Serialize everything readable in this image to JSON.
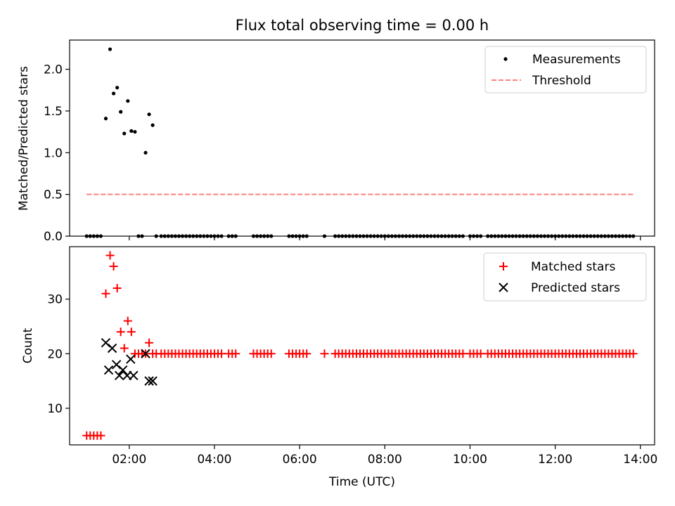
{
  "figure_title": "Flux total observing time = 0.00 h",
  "colors": {
    "measurement": "#000000",
    "threshold": "#ff7f7f",
    "matched": "#ff0000",
    "predicted": "#000000"
  },
  "chart_data": [
    {
      "type": "scatter",
      "title": "Flux total observing time = 0.00 h",
      "xlabel": "",
      "ylabel": "Matched/Predicted stars",
      "xlim": [
        "00:36",
        "14:20"
      ],
      "ylim": [
        0,
        2.35
      ],
      "yticks": [
        0.0,
        0.5,
        1.0,
        1.5,
        2.0
      ],
      "ytick_labels": [
        "0.0",
        "0.5",
        "1.0",
        "1.5",
        "2.0"
      ],
      "legend": "top-right",
      "series": [
        {
          "name": "Measurements",
          "kind": "points",
          "x": [
            "01:00",
            "01:05",
            "01:10",
            "01:15",
            "01:20",
            "01:27",
            "01:33",
            "01:38",
            "01:43",
            "01:48",
            "01:53",
            "01:58",
            "02:03",
            "02:08",
            "02:13",
            "02:18",
            "02:23",
            "02:28",
            "02:33",
            "02:38",
            "02:45",
            "02:50",
            "02:55",
            "03:00",
            "03:05",
            "03:10",
            "03:15",
            "03:20",
            "03:25",
            "03:30",
            "03:35",
            "03:40",
            "03:45",
            "03:50",
            "03:55",
            "04:00",
            "04:05",
            "04:10",
            "04:20",
            "04:25",
            "04:30",
            "04:55",
            "05:00",
            "05:05",
            "05:10",
            "05:15",
            "05:20",
            "05:45",
            "05:50",
            "05:55",
            "06:00",
            "06:05",
            "06:10",
            "06:35",
            "06:50",
            "06:55",
            "07:00",
            "07:05",
            "07:10",
            "07:15",
            "07:20",
            "07:25",
            "07:30",
            "07:35",
            "07:40",
            "07:45",
            "07:50",
            "07:55",
            "08:00",
            "08:05",
            "08:10",
            "08:15",
            "08:20",
            "08:25",
            "08:30",
            "08:35",
            "08:40",
            "08:45",
            "08:50",
            "08:55",
            "09:00",
            "09:05",
            "09:10",
            "09:15",
            "09:20",
            "09:25",
            "09:30",
            "09:35",
            "09:40",
            "09:45",
            "09:50",
            "10:00",
            "10:05",
            "10:10",
            "10:15",
            "10:25",
            "10:30",
            "10:35",
            "10:40",
            "10:45",
            "10:50",
            "10:55",
            "11:00",
            "11:05",
            "11:10",
            "11:15",
            "11:20",
            "11:25",
            "11:30",
            "11:35",
            "11:40",
            "11:45",
            "11:50",
            "11:55",
            "12:00",
            "12:05",
            "12:10",
            "12:15",
            "12:20",
            "12:25",
            "12:30",
            "12:35",
            "12:40",
            "12:45",
            "12:50",
            "12:55",
            "13:00",
            "13:05",
            "13:10",
            "13:15",
            "13:20",
            "13:25",
            "13:30",
            "13:35",
            "13:40",
            "13:45",
            "13:50"
          ],
          "y": [
            0,
            0,
            0,
            0,
            0,
            1.41,
            2.24,
            1.71,
            1.78,
            1.49,
            1.23,
            1.62,
            1.26,
            1.25,
            0,
            0,
            1.0,
            1.46,
            1.33,
            0,
            0,
            0,
            0,
            0,
            0,
            0,
            0,
            0,
            0,
            0,
            0,
            0,
            0,
            0,
            0,
            0,
            0,
            0,
            0,
            0,
            0,
            0,
            0,
            0,
            0,
            0,
            0,
            0,
            0,
            0,
            0,
            0,
            0,
            0,
            0,
            0,
            0,
            0,
            0,
            0,
            0,
            0,
            0,
            0,
            0,
            0,
            0,
            0,
            0,
            0,
            0,
            0,
            0,
            0,
            0,
            0,
            0,
            0,
            0,
            0,
            0,
            0,
            0,
            0,
            0,
            0,
            0,
            0,
            0,
            0,
            0,
            0,
            0,
            0,
            0,
            0,
            0,
            0,
            0,
            0,
            0,
            0,
            0,
            0,
            0,
            0,
            0,
            0,
            0,
            0,
            0,
            0,
            0,
            0,
            0,
            0,
            0,
            0,
            0,
            0,
            0,
            0,
            0,
            0,
            0,
            0,
            0,
            0,
            0,
            0,
            0,
            0,
            0,
            0,
            0,
            0,
            0
          ]
        },
        {
          "name": "Threshold",
          "kind": "dashed-line",
          "x": [
            "01:00",
            "13:50"
          ],
          "y": [
            0.5,
            0.5
          ]
        }
      ]
    },
    {
      "type": "scatter",
      "title": "",
      "xlabel": "Time (UTC)",
      "ylabel": "Count",
      "xlim": [
        "00:36",
        "14:20"
      ],
      "xticks": [
        "02:00",
        "04:00",
        "06:00",
        "08:00",
        "10:00",
        "12:00",
        "14:00"
      ],
      "ylim": [
        3.3,
        39.6
      ],
      "yticks": [
        10,
        20,
        30
      ],
      "ytick_labels": [
        "10",
        "20",
        "30"
      ],
      "legend": "top-right",
      "series": [
        {
          "name": "Matched stars",
          "marker": "plus",
          "x": [
            "01:00",
            "01:05",
            "01:10",
            "01:15",
            "01:20",
            "01:27",
            "01:33",
            "01:38",
            "01:43",
            "01:48",
            "01:53",
            "01:58",
            "02:03",
            "02:08",
            "02:13",
            "02:18",
            "02:23",
            "02:28",
            "02:33",
            "02:38",
            "02:45",
            "02:50",
            "02:55",
            "03:00",
            "03:05",
            "03:10",
            "03:15",
            "03:20",
            "03:25",
            "03:30",
            "03:35",
            "03:40",
            "03:45",
            "03:50",
            "03:55",
            "04:00",
            "04:05",
            "04:10",
            "04:20",
            "04:25",
            "04:30",
            "04:55",
            "05:00",
            "05:05",
            "05:10",
            "05:15",
            "05:20",
            "05:45",
            "05:50",
            "05:55",
            "06:00",
            "06:05",
            "06:10",
            "06:35",
            "06:50",
            "06:55",
            "07:00",
            "07:05",
            "07:10",
            "07:15",
            "07:20",
            "07:25",
            "07:30",
            "07:35",
            "07:40",
            "07:45",
            "07:50",
            "07:55",
            "08:00",
            "08:05",
            "08:10",
            "08:15",
            "08:20",
            "08:25",
            "08:30",
            "08:35",
            "08:40",
            "08:45",
            "08:50",
            "08:55",
            "09:00",
            "09:05",
            "09:10",
            "09:15",
            "09:20",
            "09:25",
            "09:30",
            "09:35",
            "09:40",
            "09:45",
            "09:50",
            "10:00",
            "10:05",
            "10:10",
            "10:15",
            "10:25",
            "10:30",
            "10:35",
            "10:40",
            "10:45",
            "10:50",
            "10:55",
            "11:00",
            "11:05",
            "11:10",
            "11:15",
            "11:20",
            "11:25",
            "11:30",
            "11:35",
            "11:40",
            "11:45",
            "11:50",
            "11:55",
            "12:00",
            "12:05",
            "12:10",
            "12:15",
            "12:20",
            "12:25",
            "12:30",
            "12:35",
            "12:40",
            "12:45",
            "12:50",
            "12:55",
            "13:00",
            "13:05",
            "13:10",
            "13:15",
            "13:20",
            "13:25",
            "13:30",
            "13:35",
            "13:40",
            "13:45",
            "13:50"
          ],
          "y": [
            5,
            5,
            5,
            5,
            5,
            31,
            38,
            36,
            32,
            24,
            21,
            26,
            24,
            20,
            20,
            20,
            20,
            22,
            20,
            20,
            20,
            20,
            20,
            20,
            20,
            20,
            20,
            20,
            20,
            20,
            20,
            20,
            20,
            20,
            20,
            20,
            20,
            20,
            20,
            20,
            20,
            20,
            20,
            20,
            20,
            20,
            20,
            20,
            20,
            20,
            20,
            20,
            20,
            20,
            20,
            20,
            20,
            20,
            20,
            20,
            20,
            20,
            20,
            20,
            20,
            20,
            20,
            20,
            20,
            20,
            20,
            20,
            20,
            20,
            20,
            20,
            20,
            20,
            20,
            20,
            20,
            20,
            20,
            20,
            20,
            20,
            20,
            20,
            20,
            20,
            20,
            20,
            20,
            20,
            20,
            20,
            20,
            20,
            20,
            20,
            20,
            20,
            20,
            20,
            20,
            20,
            20,
            20,
            20,
            20,
            20,
            20,
            20,
            20,
            20,
            20,
            20,
            20,
            20,
            20,
            20,
            20,
            20,
            20,
            20,
            20,
            20,
            20,
            20,
            20,
            20,
            20,
            20,
            20,
            20,
            20,
            20
          ]
        },
        {
          "name": "Predicted stars",
          "marker": "x",
          "x": [
            "01:27",
            "01:31",
            "01:36",
            "01:42",
            "01:46",
            "01:51",
            "01:57",
            "02:02",
            "02:06",
            "02:23",
            "02:28",
            "02:33"
          ],
          "y": [
            22,
            17,
            21,
            18,
            16,
            17,
            16,
            19,
            16,
            20,
            15,
            15
          ]
        }
      ]
    }
  ]
}
